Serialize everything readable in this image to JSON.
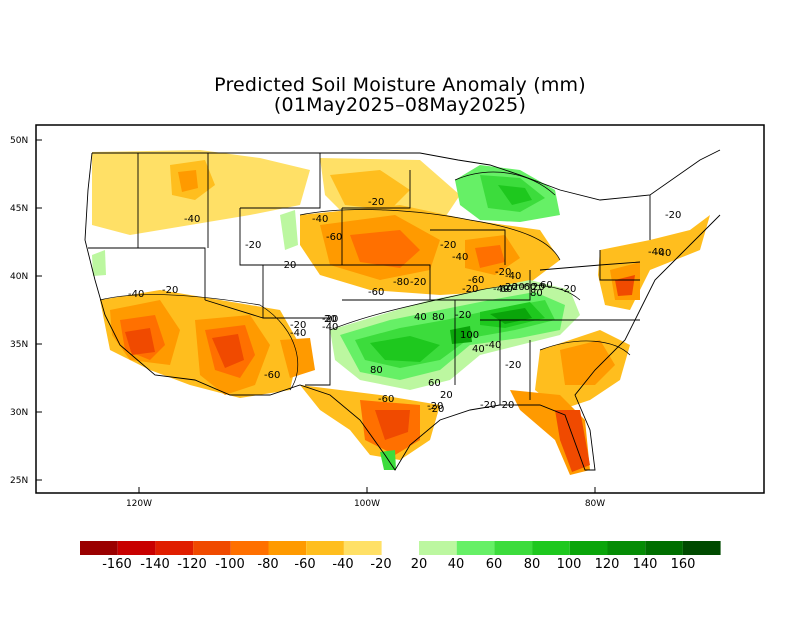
{
  "title": {
    "line1": "Predicted Soil Moisture Anomaly (mm)",
    "line2": "(01May2025–08May2025)"
  },
  "axes": {
    "lat_labels": [
      "50N",
      "45N",
      "40N",
      "35N",
      "30N",
      "25N"
    ],
    "lon_labels": [
      "120W",
      "100W",
      "80W"
    ]
  },
  "contour_labels": [
    "-40",
    "-20",
    "-40",
    "-20",
    "-60",
    "-20",
    "-20",
    "-40",
    "-60",
    "-80",
    "-40",
    "-20",
    "-40",
    "-20",
    "-60",
    "-20",
    "-40",
    "-20",
    "-40",
    "-20",
    "20",
    "-20",
    "-40",
    "-60",
    "-60",
    "-20",
    "-40",
    "-60",
    "-20",
    "-40",
    "-20",
    "-20",
    "-20",
    "20",
    "40",
    "60",
    "80",
    "20",
    "80",
    "60",
    "100",
    "40",
    "80",
    "60",
    "20",
    "20",
    "-20",
    "-20",
    "-20",
    "-40"
  ],
  "legend": {
    "dry_colors": [
      "#9a0000",
      "#c80000",
      "#e01e00",
      "#f04a00",
      "#ff7000",
      "#ff9a00",
      "#ffbe1e",
      "#ffe066"
    ],
    "wet_colors": [
      "#bcf7a0",
      "#66f066",
      "#3cdc3c",
      "#1ec81e",
      "#0aa50a",
      "#058c05",
      "#006e00",
      "#004a00"
    ],
    "labels": [
      "-160",
      "-140",
      "-120",
      "-100",
      "-80",
      "-60",
      "-40",
      "-20",
      "20",
      "40",
      "60",
      "80",
      "100",
      "120",
      "140",
      "160"
    ]
  }
}
